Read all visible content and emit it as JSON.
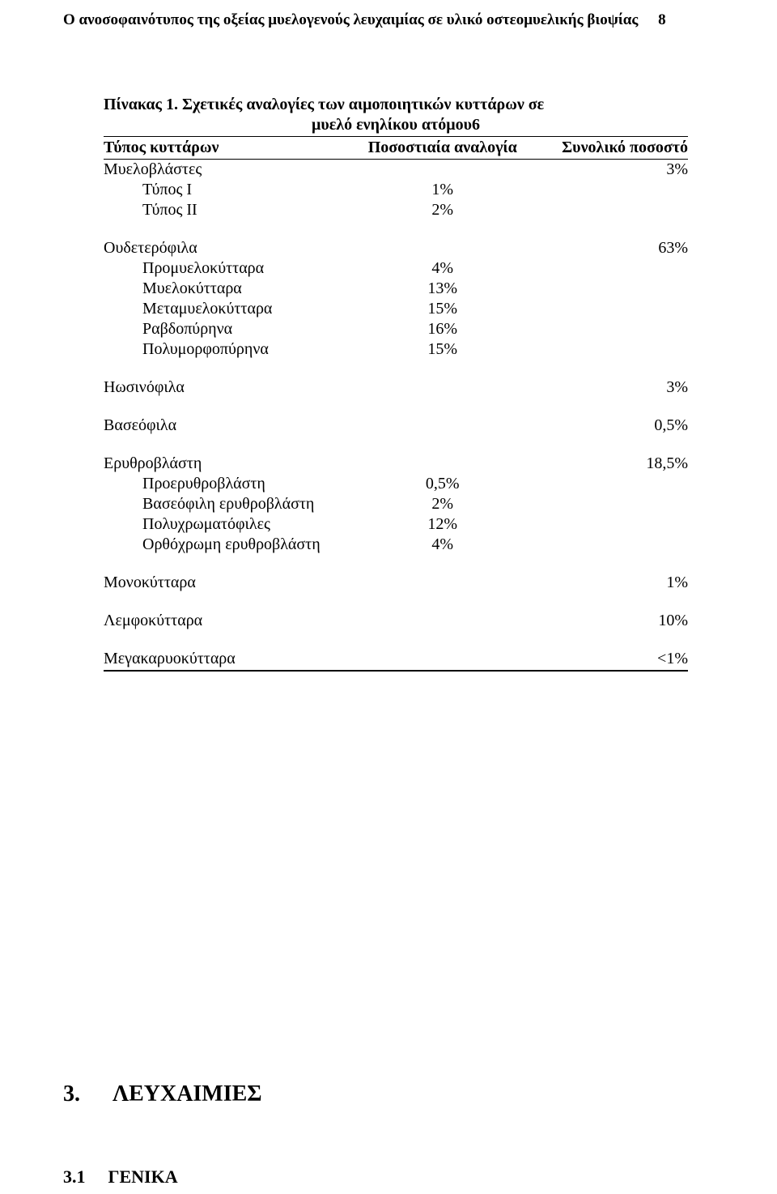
{
  "page": {
    "running_title": "Ο ανοσοφαινότυπος της οξείας μυελογενούς λευχαιμίας σε υλικό οστεομυελικής βιοψίας",
    "page_number": "8"
  },
  "table": {
    "caption_prefix": "Πίνακας 1.",
    "caption_line1": " Σχετικές αναλογίες  των αιμοποιητικών κυττάρων σε",
    "caption_line2": "μυελό ενηλίκου ατόμου",
    "caption_sup": "6",
    "columns": [
      "Τύπος κυττάρων",
      "Ποσοστιαία αναλογία",
      "Συνολικό ποσοστό"
    ],
    "groups": [
      {
        "label": "Μυελοβλάστες",
        "total": "3%",
        "subs": [
          {
            "label": "Τύπος Ι",
            "value": "1%"
          },
          {
            "label": "Τύπος ΙΙ",
            "value": "2%"
          }
        ]
      },
      {
        "label": "Ουδετερόφιλα",
        "total": "63%",
        "subs": [
          {
            "label": "Προμυελοκύτταρα",
            "value": "4%"
          },
          {
            "label": "Μυελοκύτταρα",
            "value": "13%"
          },
          {
            "label": "Μεταμυελοκύτταρα",
            "value": "15%"
          },
          {
            "label": "Ραβδοπύρηνα",
            "value": "16%"
          },
          {
            "label": "Πολυμορφοπύρηνα",
            "value": "15%"
          }
        ]
      },
      {
        "label": "Ηωσινόφιλα",
        "total": "3%",
        "subs": []
      },
      {
        "label": "Βασεόφιλα",
        "total": "0,5%",
        "subs": []
      },
      {
        "label": "Ερυθροβλάστη",
        "total": "18,5%",
        "subs": [
          {
            "label": "Προερυθροβλάστη",
            "value": "0,5%"
          },
          {
            "label": "Βασεόφιλη ερυθροβλάστη",
            "value": "2%"
          },
          {
            "label": "Πολυχρωματόφιλες",
            "value": "12%"
          },
          {
            "label": "Ορθόχρωμη ερυθροβλάστη",
            "value": "4%"
          }
        ]
      },
      {
        "label": "Μονοκύτταρα",
        "total": "1%",
        "subs": []
      },
      {
        "label": "Λεμφοκύτταρα",
        "total": "10%",
        "subs": []
      },
      {
        "label": "Μεγακαρυοκύτταρα",
        "total": "<1%",
        "subs": []
      }
    ]
  },
  "section": {
    "number": "3.",
    "title": "ΛΕΥΧΑΙΜΙΕΣ"
  },
  "subsection": {
    "number": "3.1",
    "title": "ΓΕΝΙΚΑ"
  },
  "style": {
    "body_font": "Times New Roman",
    "body_font_size_pt": 15,
    "heading_font_size_pt": 21,
    "text_color": "#000000",
    "background_color": "#ffffff",
    "rule_color": "#000000"
  }
}
